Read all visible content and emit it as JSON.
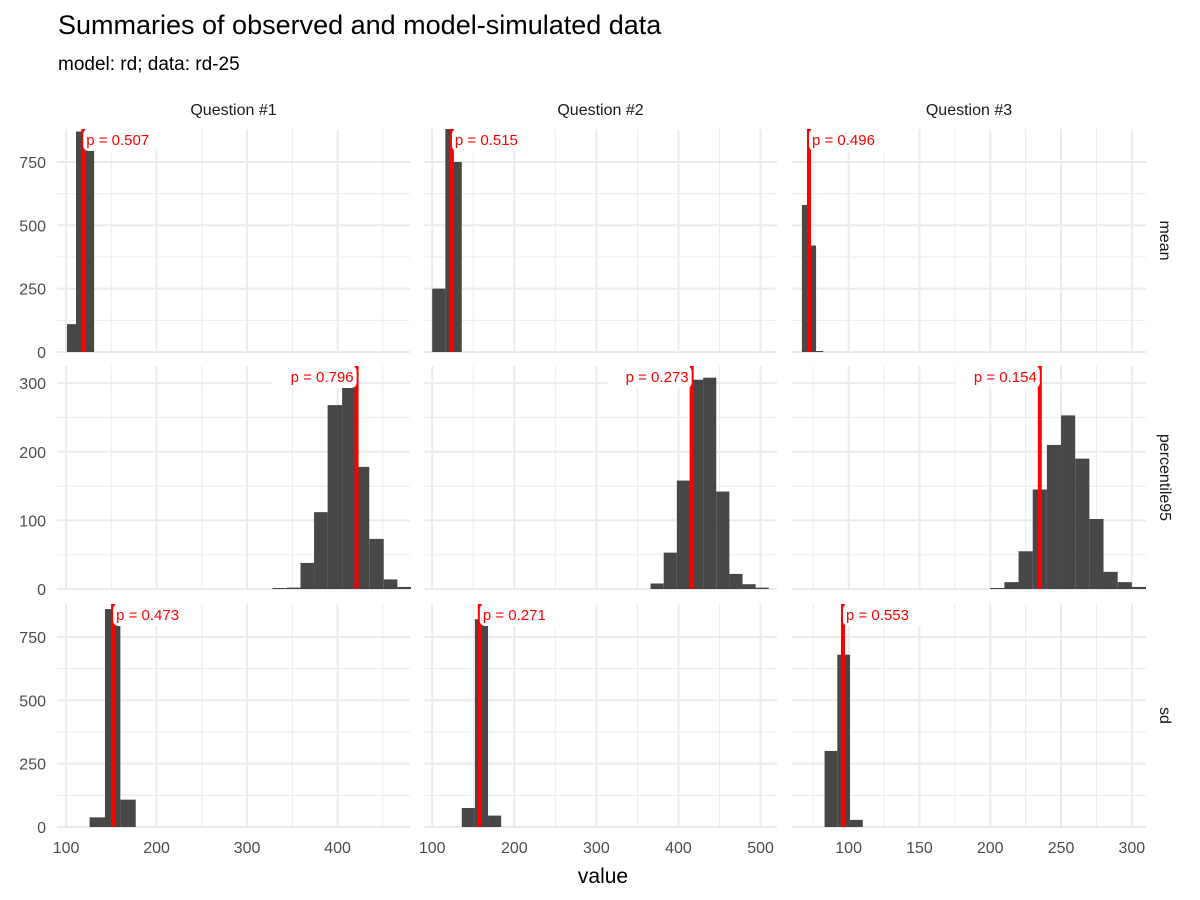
{
  "title": "Summaries of observed and model-simulated data",
  "subtitle": "model: rd; data: rd-25",
  "chart_data": {
    "type": "bar",
    "layout": "facet_grid",
    "xlabel": "value",
    "ylabel": "",
    "grid": true,
    "colors": {
      "bars": "#474747",
      "observed_line": "#ff0000",
      "p_text": "#ff0000",
      "grid": "#ebebeb"
    },
    "columns": [
      "Question #1",
      "Question #2",
      "Question #3"
    ],
    "rows": [
      "mean",
      "percentile95",
      "sd"
    ],
    "x_axes": [
      {
        "lim": [
          90,
          480
        ],
        "ticks": [
          100,
          200,
          300,
          400
        ],
        "minor": [
          150,
          250,
          350,
          450
        ]
      },
      {
        "lim": [
          90,
          520
        ],
        "ticks": [
          100,
          200,
          300,
          400,
          500
        ],
        "minor": [
          150,
          250,
          350,
          450
        ]
      },
      {
        "lim": [
          60,
          310
        ],
        "ticks": [
          100,
          150,
          200,
          250,
          300
        ],
        "minor": [
          75,
          125,
          175,
          225,
          275
        ]
      }
    ],
    "y_axes": [
      {
        "lim": [
          0,
          880
        ],
        "ticks": [
          0,
          250,
          500,
          750
        ],
        "minor": [
          125,
          375,
          625
        ]
      },
      {
        "lim": [
          0,
          325
        ],
        "ticks": [
          0,
          100,
          200,
          300
        ],
        "minor": [
          50,
          150,
          250
        ]
      },
      {
        "lim": [
          0,
          880
        ],
        "ticks": [
          0,
          250,
          500,
          750
        ],
        "minor": [
          125,
          375,
          625
        ]
      }
    ],
    "panels": [
      {
        "row": "mean",
        "col": "Question #1",
        "observed": 119,
        "p": "p = 0.507",
        "label_side": "right",
        "bins": [
          [
            101,
            111,
            110
          ],
          [
            111,
            121,
            870
          ],
          [
            121,
            131,
            830
          ]
        ]
      },
      {
        "row": "mean",
        "col": "Question #2",
        "observed": 124,
        "p": "p = 0.515",
        "label_side": "right",
        "bins": [
          [
            100,
            116,
            250
          ],
          [
            116,
            126,
            880
          ],
          [
            126,
            136,
            750
          ]
        ]
      },
      {
        "row": "mean",
        "col": "Question #3",
        "observed": 72,
        "p": "p = 0.496",
        "label_side": "right",
        "bins": [
          [
            67,
            72,
            580
          ],
          [
            72,
            77,
            420
          ],
          [
            77,
            82,
            3
          ]
        ]
      },
      {
        "row": "percentile95",
        "col": "Question #1",
        "observed": 421,
        "p": "p = 0.796",
        "label_side": "left",
        "bins": [
          [
            328,
            344,
            1
          ],
          [
            344,
            359,
            2
          ],
          [
            359,
            374,
            38
          ],
          [
            374,
            389,
            112
          ],
          [
            389,
            405,
            268
          ],
          [
            405,
            420,
            295
          ],
          [
            420,
            435,
            178
          ],
          [
            435,
            451,
            73
          ],
          [
            451,
            466,
            14
          ],
          [
            466,
            481,
            3
          ]
        ]
      },
      {
        "row": "percentile95",
        "col": "Question #2",
        "observed": 416,
        "p": "p = 0.273",
        "label_side": "left",
        "bins": [
          [
            366,
            382,
            8
          ],
          [
            382,
            398,
            53
          ],
          [
            398,
            414,
            158
          ],
          [
            414,
            430,
            305
          ],
          [
            430,
            446,
            308
          ],
          [
            446,
            462,
            142
          ],
          [
            462,
            478,
            22
          ],
          [
            478,
            494,
            7
          ],
          [
            494,
            510,
            2
          ]
        ]
      },
      {
        "row": "percentile95",
        "col": "Question #3",
        "observed": 235,
        "p": "p = 0.154",
        "label_side": "left",
        "bins": [
          [
            200,
            210,
            1
          ],
          [
            210,
            220,
            10
          ],
          [
            220,
            230,
            55
          ],
          [
            230,
            240,
            145
          ],
          [
            240,
            250,
            210
          ],
          [
            250,
            260,
            253
          ],
          [
            260,
            270,
            190
          ],
          [
            270,
            280,
            102
          ],
          [
            280,
            290,
            25
          ],
          [
            290,
            300,
            10
          ],
          [
            300,
            310,
            3
          ]
        ]
      },
      {
        "row": "sd",
        "col": "Question #1",
        "observed": 152,
        "p": "p = 0.473",
        "label_side": "right",
        "bins": [
          [
            126,
            143,
            38
          ],
          [
            143,
            160,
            860
          ],
          [
            160,
            177,
            108
          ]
        ]
      },
      {
        "row": "sd",
        "col": "Question #2",
        "observed": 158,
        "p": "p = 0.271",
        "label_side": "right",
        "bins": [
          [
            136,
            152,
            75
          ],
          [
            152,
            168,
            820
          ],
          [
            168,
            184,
            45
          ]
        ]
      },
      {
        "row": "sd",
        "col": "Question #3",
        "observed": 96,
        "p": "p = 0.553",
        "label_side": "right",
        "bins": [
          [
            83,
            92,
            300
          ],
          [
            92,
            101,
            680
          ],
          [
            101,
            110,
            28
          ]
        ]
      }
    ]
  }
}
